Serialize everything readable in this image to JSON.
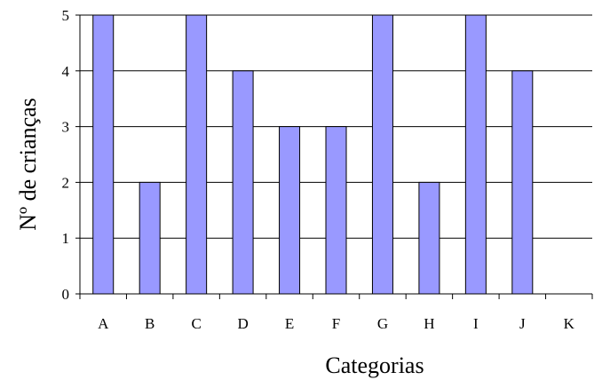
{
  "chart_data": {
    "type": "bar",
    "categories": [
      "A",
      "B",
      "C",
      "D",
      "E",
      "F",
      "G",
      "H",
      "I",
      "J",
      "K"
    ],
    "values": [
      5,
      2,
      5,
      4,
      3,
      3,
      5,
      2,
      5,
      4,
      0
    ],
    "xlabel": "Categorias",
    "ylabel": "Nº de crianças",
    "ylim": [
      0,
      5
    ],
    "yticks": [
      "0",
      "1",
      "2",
      "3",
      "4",
      "5"
    ],
    "grid": true,
    "bar_color": "#9999ff",
    "bar_edge_color": "#000000"
  }
}
